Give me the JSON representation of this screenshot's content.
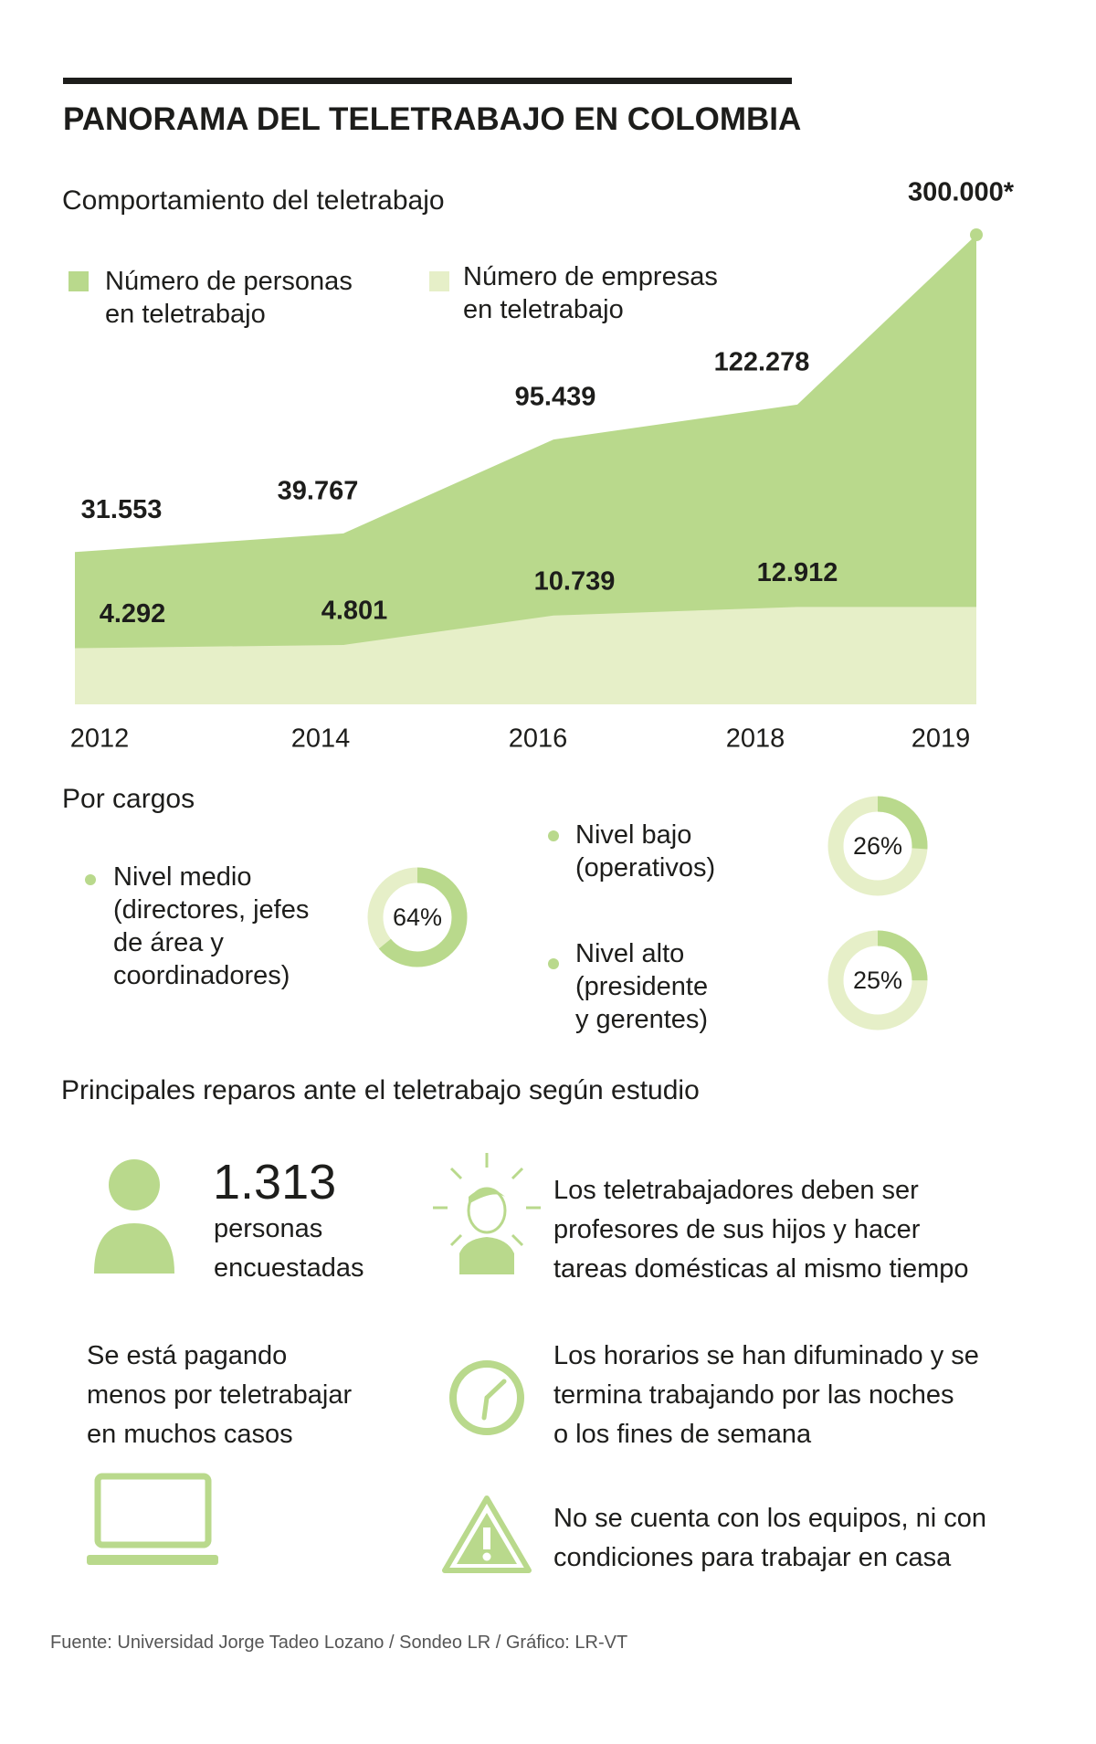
{
  "header": {
    "title": "PANORAMA DEL TELETRABAJO EN COLOMBIA"
  },
  "chart_data": [
    {
      "type": "area",
      "title": "Comportamiento del teletrabajo",
      "categories": [
        "2012",
        "2014",
        "2016",
        "2018",
        "2019"
      ],
      "series": [
        {
          "name": "Número de personas\nen teletrabajo",
          "color": "#b9d98c",
          "values": [
            31553,
            39767,
            95439,
            122278,
            300000
          ],
          "value_labels": [
            "31.553",
            "39.767",
            "95.439",
            "122.278",
            "300.000*"
          ]
        },
        {
          "name": "Número de empresas\nen teletrabajo",
          "color": "#e6efc8",
          "values": [
            4292,
            4801,
            10739,
            12912,
            12912
          ],
          "value_labels": [
            "4.292",
            "4.801",
            "10.739",
            "12.912",
            null
          ]
        }
      ]
    },
    {
      "type": "donut",
      "title": "Por cargos",
      "categories": [
        "Nivel medio\n(directores, jefes\nde área y\ncoordinadores)",
        "Nivel bajo\n(operativos)",
        "Nivel alto\n(presidente\ny gerentes)"
      ],
      "values": [
        64,
        26,
        25
      ],
      "value_labels": [
        "64%",
        "26%",
        "25%"
      ],
      "color": "#b9d98c",
      "track_color": "#e6efc8"
    }
  ],
  "reparos": {
    "title": "Principales reparos ante el teletrabajo según estudio",
    "count": "1.313",
    "count_label": "personas\nencuestadas",
    "items": [
      "Los teletrabajadores deben ser\nprofesores de sus hijos y hacer\ntareas domésticas al mismo tiempo",
      "Se está pagando\nmenos por teletrabajar\nen muchos casos",
      "Los horarios se han difuminado y se\ntermina trabajando por las noches\no los fines de semana",
      "No se cuenta con los equipos, ni con\ncondiciones para trabajar en casa"
    ]
  },
  "footer": {
    "source": "Fuente: Universidad Jorge Tadeo Lozano / Sondeo LR / Gráfico: LR-VT"
  }
}
